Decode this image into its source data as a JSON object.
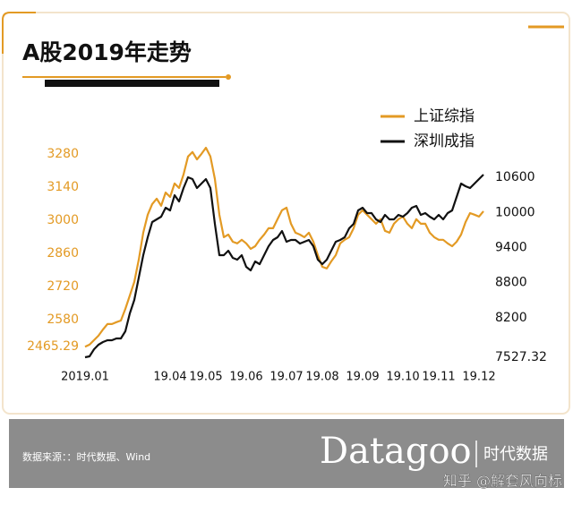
{
  "chart_data": {
    "type": "line",
    "title": "A股2019年走势",
    "categories": [
      "2019.01",
      null,
      null,
      null,
      null,
      null,
      null,
      null,
      null,
      null,
      null,
      null,
      null,
      null,
      null,
      null,
      null,
      null,
      null,
      "19.04",
      null,
      null,
      null,
      null,
      null,
      null,
      null,
      "19.05",
      null,
      null,
      null,
      null,
      null,
      null,
      null,
      null,
      "19.06",
      null,
      null,
      null,
      null,
      null,
      null,
      null,
      null,
      "19.07",
      null,
      null,
      null,
      null,
      null,
      null,
      null,
      "19.08",
      null,
      null,
      null,
      null,
      null,
      null,
      null,
      null,
      "19.09",
      null,
      null,
      null,
      null,
      null,
      null,
      null,
      null,
      "19.10",
      null,
      null,
      null,
      null,
      null,
      null,
      null,
      "19.11",
      null,
      null,
      null,
      null,
      null,
      null,
      null,
      null,
      "19.12",
      null
    ],
    "series": [
      {
        "name": "上证综指",
        "color": "#e39a24",
        "values": [
          2465,
          2474,
          2493,
          2512,
          2538,
          2561,
          2561,
          2569,
          2576,
          2625,
          2682,
          2739,
          2833,
          2947,
          3023,
          3068,
          3091,
          3061,
          3117,
          3098,
          3155,
          3136,
          3193,
          3269,
          3288,
          3257,
          3280,
          3306,
          3269,
          3174,
          3023,
          2928,
          2939,
          2909,
          2902,
          2917,
          2902,
          2879,
          2890,
          2917,
          2939,
          2966,
          2966,
          3004,
          3042,
          3053,
          2985,
          2947,
          2939,
          2928,
          2947,
          2909,
          2852,
          2803,
          2796,
          2826,
          2852,
          2902,
          2917,
          2928,
          2966,
          3023,
          3042,
          3023,
          3004,
          2985,
          3004,
          2955,
          2947,
          2985,
          3004,
          3015,
          2985,
          2966,
          3004,
          2985,
          2985,
          2947,
          2928,
          2917,
          2917,
          2902,
          2890,
          2909,
          2939,
          2992,
          3030,
          3023,
          3015,
          3038
        ]
      },
      {
        "name": "深圳成指",
        "color": "#111111",
        "axis": "y2",
        "values": [
          7527,
          7542,
          7664,
          7741,
          7787,
          7817,
          7817,
          7848,
          7848,
          7970,
          8276,
          8505,
          8888,
          9270,
          9576,
          9835,
          9881,
          9927,
          10080,
          10034,
          10294,
          10187,
          10417,
          10600,
          10569,
          10417,
          10493,
          10569,
          10417,
          9805,
          9270,
          9270,
          9346,
          9224,
          9193,
          9270,
          9071,
          9010,
          9163,
          9117,
          9270,
          9423,
          9530,
          9576,
          9683,
          9499,
          9530,
          9530,
          9469,
          9499,
          9530,
          9423,
          9193,
          9117,
          9193,
          9346,
          9499,
          9530,
          9576,
          9728,
          9805,
          10034,
          10080,
          9988,
          9988,
          9881,
          9835,
          9958,
          9881,
          9881,
          9958,
          9927,
          9988,
          10080,
          10111,
          9958,
          9988,
          9927,
          9881,
          9958,
          9881,
          9988,
          10034,
          10264,
          10493,
          10447,
          10417,
          10493,
          10569,
          10646
        ]
      }
    ],
    "ylim": [
      2417,
      3325
    ],
    "yticks": [
      2465.29,
      2580,
      2720,
      2860,
      3000,
      3140,
      3280
    ],
    "y2lim": [
      7512,
      11181
    ],
    "y2ticks": [
      7527.32,
      8200,
      8800,
      9400,
      10000,
      10600
    ],
    "legend": "top-right",
    "grid": false
  },
  "footer": {
    "source": "数据来源：：时代数据、Wind",
    "brand": "Datagoo",
    "brand_cn": "时代数据",
    "watermark": "知乎 @解套风向标"
  }
}
